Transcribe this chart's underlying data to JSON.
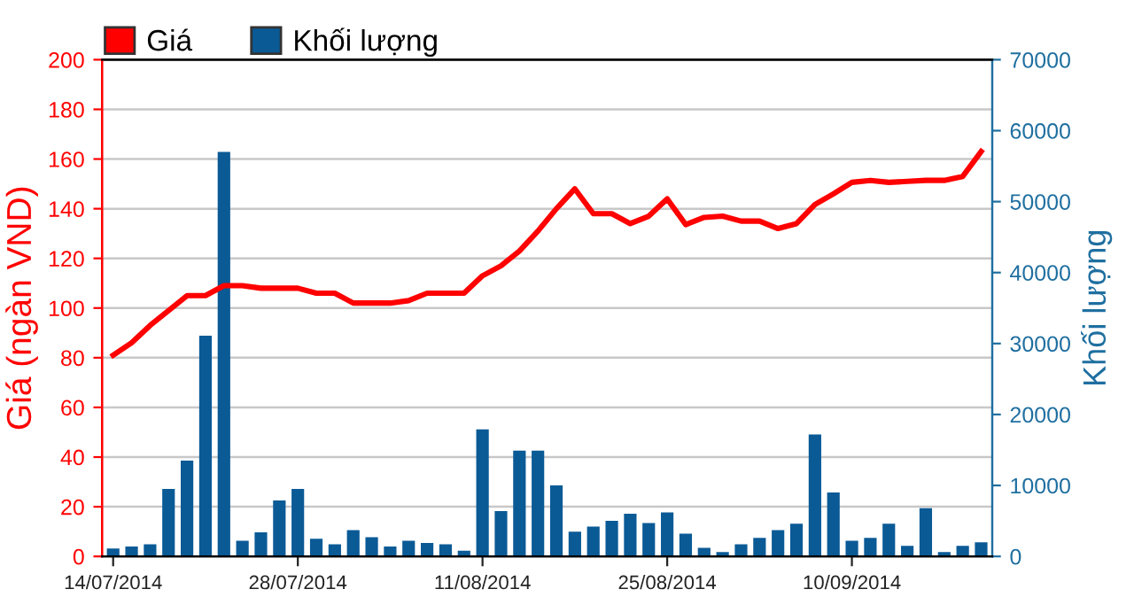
{
  "chart_data": {
    "type": "bar",
    "categories": [
      "14/07/2014",
      null,
      null,
      null,
      null,
      null,
      null,
      null,
      null,
      null,
      "28/07/2014",
      null,
      null,
      null,
      null,
      null,
      null,
      null,
      null,
      null,
      "11/08/2014",
      null,
      null,
      null,
      null,
      null,
      null,
      null,
      null,
      null,
      "25/08/2014",
      null,
      null,
      null,
      null,
      null,
      null,
      null,
      null,
      null,
      "10/09/2014",
      null,
      null,
      null,
      null,
      null,
      null,
      null
    ],
    "series": [
      {
        "name": "Giá",
        "type": "line",
        "color": "#ff0000",
        "values": [
          81,
          86,
          93,
          99,
          105,
          105,
          109,
          109,
          108,
          108,
          108,
          106,
          106,
          102,
          102,
          102,
          103,
          106,
          106,
          106,
          113,
          117,
          123,
          131,
          140,
          148,
          138,
          138,
          134,
          137,
          144,
          133.6,
          136.5,
          137,
          135,
          135,
          132,
          134,
          141.7,
          146,
          150.6,
          151.4,
          150.6,
          151,
          151.4,
          151.4,
          153,
          163
        ]
      },
      {
        "name": "Khối lượng",
        "axis": "y2",
        "color": "#0a5a96",
        "values": [
          1100,
          1400,
          1700,
          9500,
          13500,
          31100,
          57000,
          2200,
          3400,
          7900,
          9500,
          2500,
          1700,
          3700,
          2700,
          1400,
          2200,
          1900,
          1700,
          800,
          17900,
          6400,
          14900,
          14900,
          10000,
          3500,
          4200,
          5000,
          6000,
          4700,
          6200,
          3200,
          1200,
          600,
          1700,
          2600,
          3700,
          4600,
          17200,
          9000,
          2200,
          2600,
          4600,
          1500,
          6800,
          600,
          1500,
          2000
        ]
      }
    ],
    "ylabel": "Giá (ngàn VND)",
    "y2label": "Khối lượng",
    "ylim": [
      0,
      200
    ],
    "yticks": [
      0,
      20,
      40,
      60,
      80,
      100,
      120,
      140,
      160,
      180,
      200
    ],
    "y2lim": [
      0,
      70000
    ],
    "y2ticks": [
      0,
      10000,
      20000,
      30000,
      40000,
      50000,
      60000,
      70000
    ],
    "grid": "y",
    "legend": "top left",
    "marker": "none",
    "line_style": "solid"
  }
}
